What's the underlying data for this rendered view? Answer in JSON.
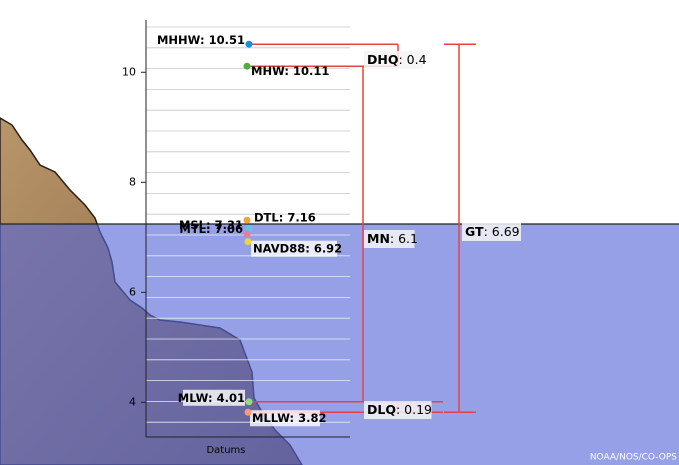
{
  "chart_data": {
    "type": "datums",
    "x_label": "Datums",
    "credit": "NOAA/NOS/CO-OPS",
    "ylim": [
      3.37,
      10.95
    ],
    "yticks": [
      4,
      6,
      8,
      10
    ],
    "datums": [
      {
        "name": "MHHW",
        "value": 10.51,
        "color": "#1c8fd6"
      },
      {
        "name": "MHW",
        "value": 10.11,
        "color": "#4caf3a"
      },
      {
        "name": "DTL",
        "value": 7.16,
        "color": "#5bc8e8"
      },
      {
        "name": "MTL",
        "value": 7.06,
        "color": "#e87aa0"
      },
      {
        "name": "MSL",
        "value": 7.31,
        "color": "#f2a23a"
      },
      {
        "name": "NAVD88",
        "value": 6.92,
        "color": "#f2d23a"
      },
      {
        "name": "MLW",
        "value": 4.01,
        "color": "#8ee07a"
      },
      {
        "name": "MLLW",
        "value": 3.82,
        "color": "#f29a7a"
      }
    ],
    "ranges": [
      {
        "name": "DHQ",
        "value": 0.4
      },
      {
        "name": "MN",
        "value": 6.1
      },
      {
        "name": "GT",
        "value": 6.69
      },
      {
        "name": "DLQ",
        "value": 0.19
      }
    ],
    "range_color": "#e8404a"
  }
}
